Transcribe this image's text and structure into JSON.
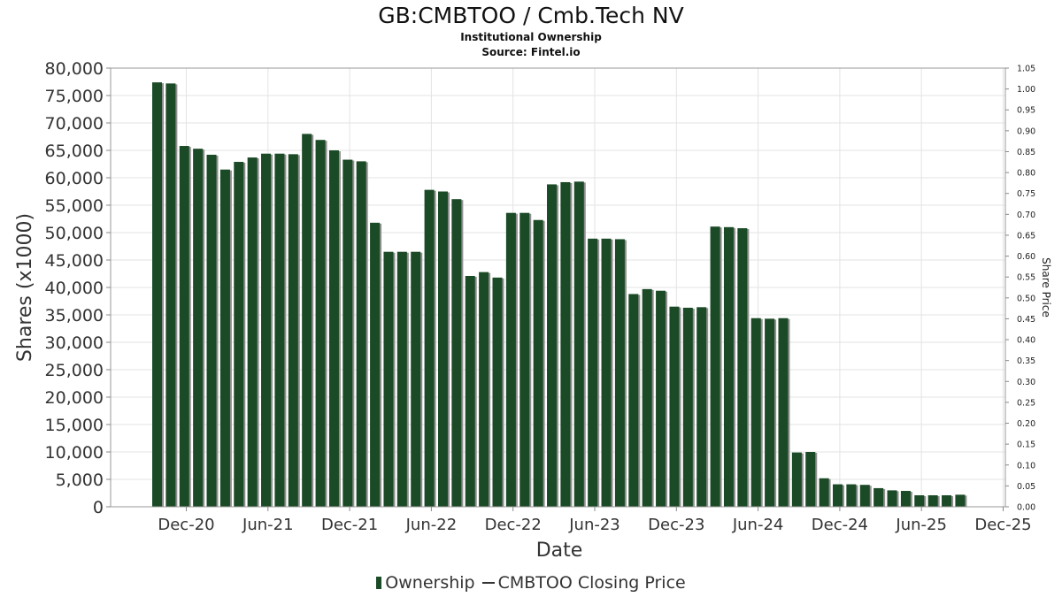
{
  "chart_data": {
    "type": "bar",
    "title": "GB:CMBTOO / Cmb.Tech NV",
    "subtitle": "Institutional Ownership",
    "source": "Source: Fintel.io",
    "xlabel": "Date",
    "ylabel": "Shares (x1000)",
    "y2label": "Share Price",
    "ylim": [
      0,
      80000
    ],
    "y2lim": [
      0,
      1.05
    ],
    "grid": true,
    "legend_position": "bottom",
    "x_tick_labels": [
      "Dec-20",
      "Jun-21",
      "Dec-21",
      "Jun-22",
      "Dec-22",
      "Jun-23",
      "Dec-23",
      "Jun-24",
      "Dec-24",
      "Jun-25",
      "Dec-25"
    ],
    "y_tick_labels": [
      "0",
      "5,000",
      "10,000",
      "15,000",
      "20,000",
      "25,000",
      "30,000",
      "35,000",
      "40,000",
      "45,000",
      "50,000",
      "55,000",
      "60,000",
      "65,000",
      "70,000",
      "75,000",
      "80,000"
    ],
    "y2_tick_labels": [
      "0.00",
      "0.05",
      "0.10",
      "0.15",
      "0.20",
      "0.25",
      "0.30",
      "0.35",
      "0.40",
      "0.45",
      "0.50",
      "0.55",
      "0.60",
      "0.65",
      "0.70",
      "0.75",
      "0.80",
      "0.85",
      "0.90",
      "0.95",
      "1.00",
      "1.05"
    ],
    "series": [
      {
        "name": "Ownership",
        "color": "#1b4a26",
        "values": [
          77400,
          77200,
          65800,
          65300,
          64200,
          61500,
          62900,
          63700,
          64400,
          64400,
          64300,
          68000,
          66900,
          65000,
          63300,
          63000,
          51800,
          46500,
          46500,
          46500,
          57800,
          57500,
          56100,
          42100,
          42800,
          41800,
          53600,
          53600,
          52300,
          58800,
          59200,
          59300,
          48900,
          48900,
          48800,
          38800,
          39700,
          39400,
          36500,
          36300,
          36400,
          51100,
          51000,
          50800,
          34400,
          34300,
          34400,
          9900,
          10000,
          5200,
          4100,
          4100,
          4000,
          3400,
          3000,
          2900,
          2100,
          2100,
          2100,
          2200
        ]
      },
      {
        "name": "CMBTOO Closing Price",
        "color": "#333333",
        "values": []
      }
    ]
  }
}
